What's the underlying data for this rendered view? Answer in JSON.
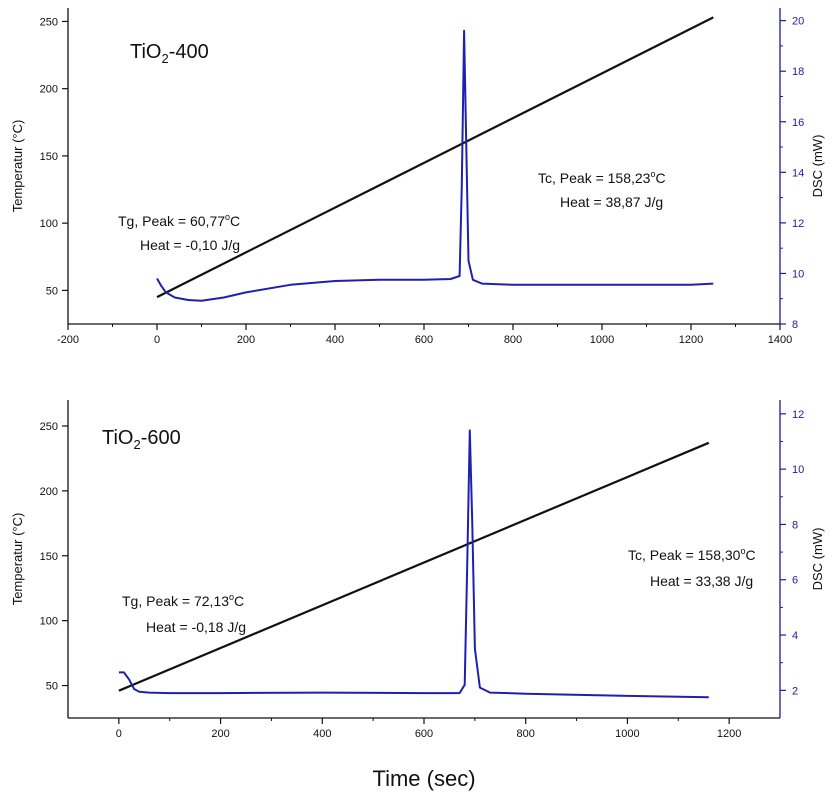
{
  "colors": {
    "temperature_line": "#111111",
    "dsc_line": "#2020b0",
    "right_axis": "#1a1aa8"
  },
  "xlabel": "Time (sec)",
  "chart_data": [
    {
      "type": "line",
      "title_main": "TiO",
      "title_sub": "2",
      "title_rest": "-400",
      "ylabel_left": "Temperatur (°C)",
      "ylabel_right": "DSC (mW)",
      "xlim": [
        -200,
        1400
      ],
      "ylim_left": [
        25,
        260
      ],
      "ylim_right": [
        8,
        20.5
      ],
      "x_ticks": [
        -200,
        0,
        200,
        400,
        600,
        800,
        1000,
        1200,
        1400
      ],
      "y_left_ticks": [
        50,
        100,
        150,
        200,
        250
      ],
      "y_right_ticks": [
        8,
        10,
        12,
        14,
        16,
        18,
        20
      ],
      "series": [
        {
          "axis": "left",
          "x": [
            0,
            1250
          ],
          "y": [
            45,
            253
          ]
        },
        {
          "axis": "right",
          "x": [
            0,
            10,
            20,
            40,
            70,
            100,
            150,
            200,
            300,
            400,
            500,
            600,
            660,
            680,
            685,
            690,
            695,
            700,
            710,
            730,
            800,
            1000,
            1200,
            1250
          ],
          "y": [
            9.8,
            9.5,
            9.25,
            9.05,
            8.95,
            8.92,
            9.05,
            9.25,
            9.55,
            9.7,
            9.75,
            9.75,
            9.78,
            9.9,
            13.5,
            19.6,
            15.0,
            10.5,
            9.75,
            9.6,
            9.55,
            9.55,
            9.55,
            9.6
          ]
        }
      ],
      "annotations": [
        {
          "line1_pre": "Tc, Peak = 158,23",
          "line1_sup": "o",
          "line1_post": "C",
          "line2": "Heat = 38,87 J/g"
        },
        {
          "line1_pre": "Tg, Peak = 60,77",
          "line1_sup": "o",
          "line1_post": "C",
          "line2": "Heat = -0,10 J/g"
        }
      ]
    },
    {
      "type": "line",
      "title_main": "TiO",
      "title_sub": "2",
      "title_rest": "-600",
      "ylabel_left": "Temperatur (°C)",
      "ylabel_right": "DSC (mW)",
      "xlim": [
        -100,
        1300
      ],
      "ylim_left": [
        25,
        270
      ],
      "ylim_right": [
        1,
        12.5
      ],
      "x_ticks": [
        0,
        200,
        400,
        600,
        800,
        1000,
        1200
      ],
      "y_left_ticks": [
        50,
        100,
        150,
        200,
        250
      ],
      "y_right_ticks": [
        2,
        4,
        6,
        8,
        10,
        12
      ],
      "series": [
        {
          "axis": "left",
          "x": [
            0,
            1160
          ],
          "y": [
            46,
            237
          ]
        },
        {
          "axis": "right",
          "x": [
            0,
            10,
            20,
            30,
            40,
            60,
            100,
            200,
            400,
            600,
            670,
            680,
            685,
            690,
            695,
            700,
            710,
            730,
            800,
            1000,
            1160
          ],
          "y": [
            2.65,
            2.65,
            2.4,
            2.05,
            1.95,
            1.92,
            1.9,
            1.9,
            1.92,
            1.9,
            1.9,
            2.2,
            6.5,
            11.4,
            8.0,
            3.5,
            2.1,
            1.92,
            1.88,
            1.8,
            1.75
          ]
        }
      ],
      "annotations": [
        {
          "line1_pre": "Tc, Peak = 158,30",
          "line1_sup": "o",
          "line1_post": "C",
          "line2": "Heat = 33,38 J/g"
        },
        {
          "line1_pre": "Tg, Peak = 72,13",
          "line1_sup": "o",
          "line1_post": "C",
          "line2": "Heat = -0,18 J/g"
        }
      ]
    }
  ]
}
